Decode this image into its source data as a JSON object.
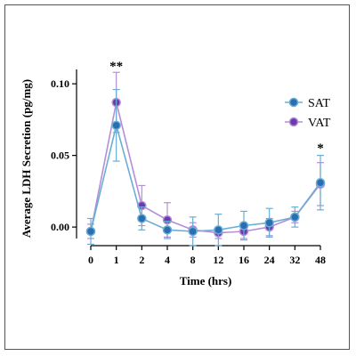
{
  "chart_data": {
    "type": "line",
    "title": "",
    "xlabel": "Time (hrs)",
    "ylabel": "Average LDH Secretion (pg/mg)",
    "categories": [
      "0",
      "1",
      "2",
      "4",
      "8",
      "12",
      "16",
      "24",
      "32",
      "48"
    ],
    "yticks": [
      "0.00",
      "0.05",
      "0.10"
    ],
    "ylim": [
      -0.008,
      0.115
    ],
    "grid": false,
    "legend_position": "top-right",
    "series": [
      {
        "name": "SAT",
        "color": "#6aaed6",
        "marker_fill": "#2a6db0",
        "values": [
          -0.003,
          0.071,
          0.006,
          -0.002,
          -0.003,
          -0.002,
          0.001,
          0.003,
          0.007,
          0.031
        ],
        "errors": [
          0.009,
          0.025,
          0.008,
          0.006,
          0.01,
          0.011,
          0.01,
          0.01,
          0.007,
          0.019
        ]
      },
      {
        "name": "VAT",
        "color": "#b58fd6",
        "marker_fill": "#6a3ab0",
        "values": [
          -0.003,
          0.087,
          0.015,
          0.005,
          -0.002,
          -0.004,
          -0.003,
          0.0,
          0.007,
          0.03
        ],
        "errors": [
          0.005,
          0.021,
          0.014,
          0.012,
          0.005,
          0.004,
          0.005,
          0.006,
          0.004,
          0.015
        ]
      }
    ],
    "annotations": [
      {
        "category_index": 1,
        "text": "**",
        "y": 0.113
      },
      {
        "category_index": 9,
        "text": "*",
        "y": 0.056
      }
    ]
  }
}
